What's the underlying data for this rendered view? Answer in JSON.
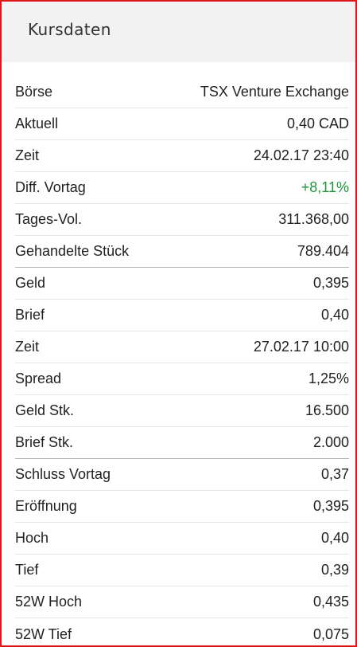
{
  "header": {
    "title": "Kursdaten"
  },
  "colors": {
    "positive": "#1e9a3a",
    "frame": "#e0141b"
  },
  "rows": [
    {
      "label": "Börse",
      "value": "TSX Venture Exchange"
    },
    {
      "label": "Aktuell",
      "value": "0,40 CAD"
    },
    {
      "label": "Zeit",
      "value": "24.02.17 23:40"
    },
    {
      "label": "Diff. Vortag",
      "value": "+8,11%"
    },
    {
      "label": "Tages-Vol.",
      "value": "311.368,00"
    },
    {
      "label": "Gehandelte Stück",
      "value": "789.404"
    },
    {
      "label": "Geld",
      "value": "0,395"
    },
    {
      "label": "Brief",
      "value": "0,40"
    },
    {
      "label": "Zeit",
      "value": "27.02.17 10:00"
    },
    {
      "label": "Spread",
      "value": "1,25%"
    },
    {
      "label": "Geld Stk.",
      "value": "16.500"
    },
    {
      "label": "Brief Stk.",
      "value": "2.000"
    },
    {
      "label": "Schluss Vortag",
      "value": "0,37"
    },
    {
      "label": "Eröffnung",
      "value": "0,395"
    },
    {
      "label": "Hoch",
      "value": "0,40"
    },
    {
      "label": "Tief",
      "value": "0,39"
    },
    {
      "label": "52W Hoch",
      "value": "0,435"
    },
    {
      "label": "52W Tief",
      "value": "0,075"
    }
  ]
}
